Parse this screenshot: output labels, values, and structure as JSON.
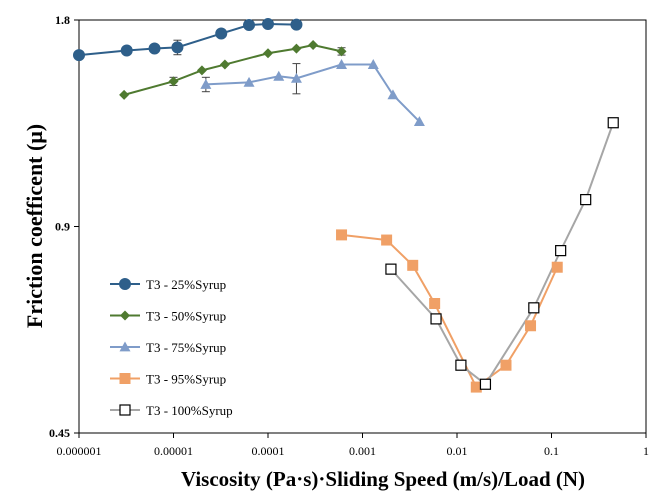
{
  "chart_data": {
    "type": "scatter",
    "xlabel": "Viscosity (Pa·s)·Sliding Speed (m/s)/Load (N)",
    "ylabel": "Friction coefficent (μ)",
    "x_scale": "log",
    "xlim": [
      1e-06,
      1
    ],
    "ylim": [
      0.45,
      1.8
    ],
    "x_ticks": [
      "0.000001",
      "0.00001",
      "0.0001",
      "0.001",
      "0.01",
      "0.1",
      "1"
    ],
    "y_ticks": [
      "0.45",
      "0.9",
      "1.8"
    ],
    "legend_position": "bottom-left",
    "series": [
      {
        "name": "T3 - 25%Syrup",
        "color": "#2e5f8a",
        "marker": "circle",
        "points": [
          {
            "x": 1e-06,
            "y": 1.6
          },
          {
            "x": 3.2e-06,
            "y": 1.625
          },
          {
            "x": 6.3e-06,
            "y": 1.636
          },
          {
            "x": 1.1e-05,
            "y": 1.642,
            "err": 0.04
          },
          {
            "x": 3.2e-05,
            "y": 1.72
          },
          {
            "x": 6.3e-05,
            "y": 1.77
          },
          {
            "x": 0.0001,
            "y": 1.776
          },
          {
            "x": 0.0002,
            "y": 1.772
          }
        ]
      },
      {
        "name": "T3 - 50%Syrup",
        "color": "#4f7a30",
        "marker": "diamond",
        "points": [
          {
            "x": 3e-06,
            "y": 1.4
          },
          {
            "x": 1e-05,
            "y": 1.465,
            "err": 0.02
          },
          {
            "x": 2e-05,
            "y": 1.52
          },
          {
            "x": 3.5e-05,
            "y": 1.55
          },
          {
            "x": 0.0001,
            "y": 1.61
          },
          {
            "x": 0.0002,
            "y": 1.635
          },
          {
            "x": 0.0003,
            "y": 1.655
          },
          {
            "x": 0.0006,
            "y": 1.62,
            "err": 0.02
          }
        ]
      },
      {
        "name": "T3 - 75%Syrup",
        "color": "#7f9cc9",
        "marker": "triangle",
        "points": [
          {
            "x": 2.2e-05,
            "y": 1.45,
            "err": 0.035
          },
          {
            "x": 6.3e-05,
            "y": 1.46
          },
          {
            "x": 0.00013,
            "y": 1.49
          },
          {
            "x": 0.0002,
            "y": 1.48,
            "err": 0.075
          },
          {
            "x": 0.0006,
            "y": 1.55
          },
          {
            "x": 0.0013,
            "y": 1.55
          },
          {
            "x": 0.0021,
            "y": 1.4
          },
          {
            "x": 0.004,
            "y": 1.28
          }
        ]
      },
      {
        "name": "T3 - 95%Syrup",
        "color": "#f0a066",
        "marker": "square",
        "points": [
          {
            "x": 0.0006,
            "y": 0.875
          },
          {
            "x": 0.0018,
            "y": 0.86
          },
          {
            "x": 0.0034,
            "y": 0.79
          },
          {
            "x": 0.0058,
            "y": 0.695
          },
          {
            "x": 0.016,
            "y": 0.525
          },
          {
            "x": 0.033,
            "y": 0.565
          },
          {
            "x": 0.06,
            "y": 0.645
          },
          {
            "x": 0.115,
            "y": 0.785
          }
        ]
      },
      {
        "name": "T3 - 100%Syrup",
        "color": "#a6a6a6",
        "marker": "open-square",
        "points": [
          {
            "x": 0.002,
            "y": 0.78
          },
          {
            "x": 0.006,
            "y": 0.66
          },
          {
            "x": 0.011,
            "y": 0.565
          },
          {
            "x": 0.02,
            "y": 0.53
          },
          {
            "x": 0.065,
            "y": 0.685
          },
          {
            "x": 0.125,
            "y": 0.83
          },
          {
            "x": 0.23,
            "y": 0.985
          },
          {
            "x": 0.45,
            "y": 1.275
          }
        ]
      }
    ]
  }
}
